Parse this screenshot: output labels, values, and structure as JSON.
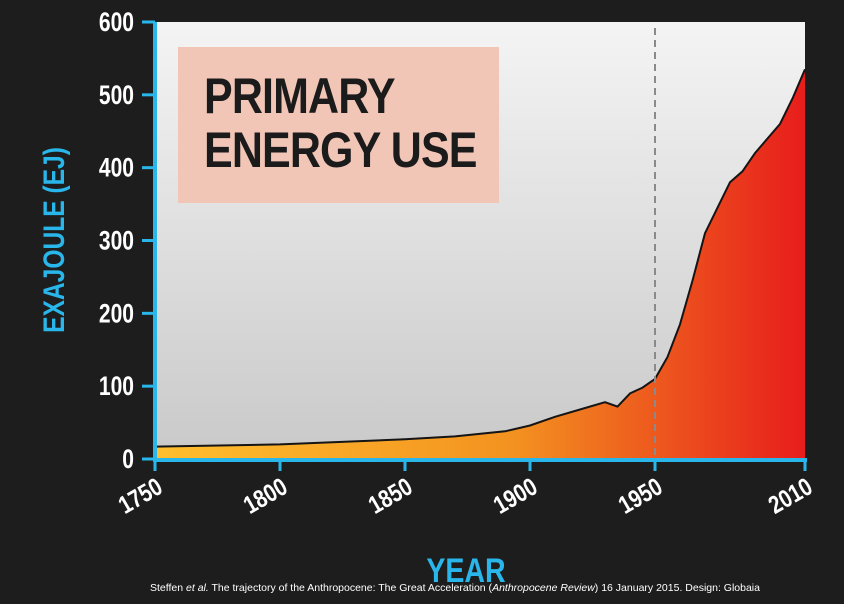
{
  "chart_data": {
    "type": "area",
    "title_lines": [
      "PRIMARY",
      "ENERGY USE"
    ],
    "xlabel": "YEAR",
    "ylabel": "EXAJOULE (EJ)",
    "xlim": [
      1750,
      2010
    ],
    "ylim": [
      0,
      600
    ],
    "x_ticks": [
      1750,
      1800,
      1850,
      1900,
      1950,
      2010
    ],
    "y_ticks": [
      0,
      100,
      200,
      300,
      400,
      500,
      600
    ],
    "highlight_x": 1950,
    "highlight_label": "1950",
    "series": [
      {
        "name": "Primary energy use",
        "x": [
          1750,
          1800,
          1850,
          1870,
          1890,
          1900,
          1910,
          1920,
          1930,
          1935,
          1940,
          1945,
          1950,
          1955,
          1960,
          1965,
          1970,
          1975,
          1980,
          1985,
          1990,
          1995,
          2000,
          2005,
          2010
        ],
        "values": [
          17,
          20,
          27,
          31,
          38,
          46,
          58,
          68,
          78,
          72,
          90,
          98,
          110,
          140,
          185,
          245,
          310,
          345,
          380,
          395,
          420,
          440,
          460,
          495,
          535
        ]
      }
    ],
    "colors": {
      "gradient_start": "#ffbf2e",
      "gradient_mid": "#f39220",
      "gradient_end": "#e71d1c",
      "axis": "#29b6ea",
      "highlight": "#e31b23",
      "plot_bg_top": "#f4f4f4",
      "plot_bg_bottom": "#c9c9c9"
    }
  },
  "citation": {
    "author": "Steffen ",
    "etal": "et al.",
    "mid": " The trajectory of the Anthropocene: The Great Acceleration (",
    "journal": "Anthropocene Review",
    "tail": ") 16 January 2015. Design: Globaia"
  }
}
